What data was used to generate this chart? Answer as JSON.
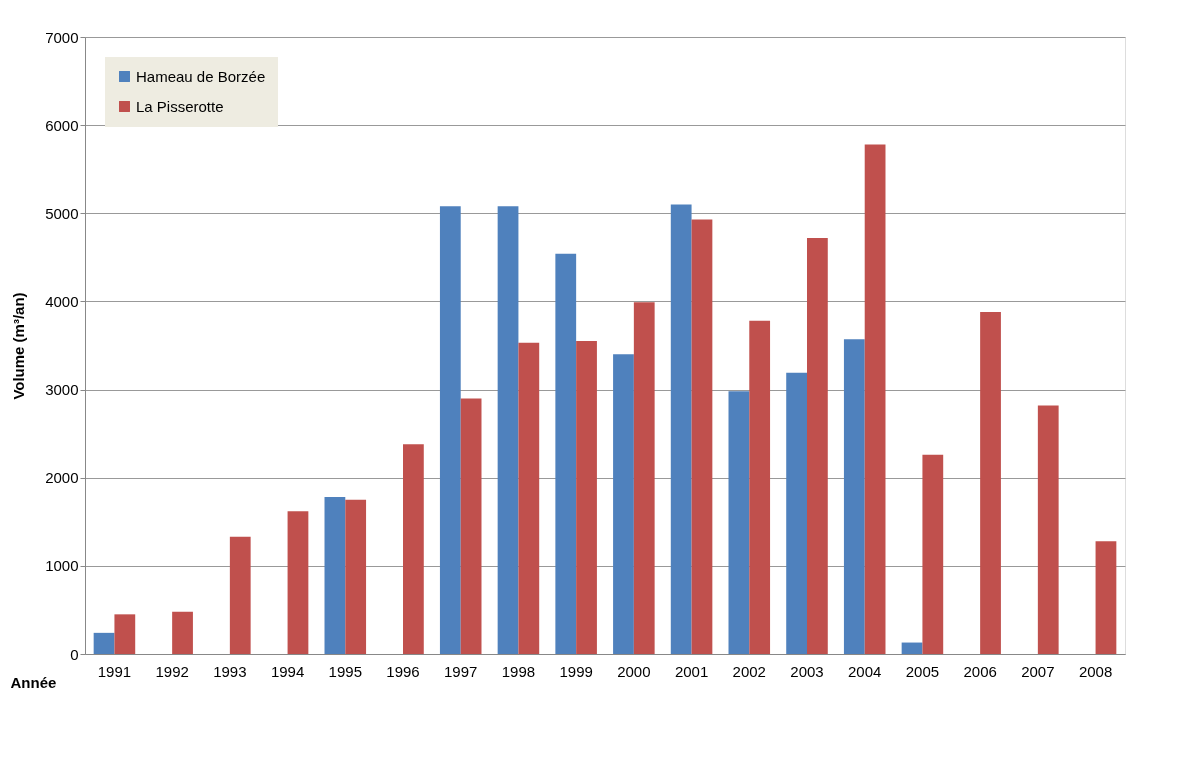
{
  "chart_data": {
    "type": "bar",
    "xlabel": "Année",
    "ylabel": "Volume (m³/an)",
    "categories": [
      "1991",
      "1992",
      "1993",
      "1994",
      "1995",
      "1996",
      "1997",
      "1998",
      "1999",
      "2000",
      "2001",
      "2002",
      "2003",
      "2004",
      "2005",
      "2006",
      "2007",
      "2008"
    ],
    "series": [
      {
        "name": "Hameau de Borzée",
        "color": "#4f81bd",
        "values": [
          240,
          null,
          null,
          null,
          1780,
          null,
          5080,
          5080,
          4540,
          3400,
          5100,
          2980,
          3190,
          3570,
          130,
          null,
          null,
          null
        ]
      },
      {
        "name": "La Pisserotte",
        "color": "#c0504d",
        "values": [
          450,
          480,
          1330,
          1620,
          1750,
          2380,
          2900,
          3530,
          3550,
          3990,
          4930,
          3780,
          4720,
          5780,
          2260,
          3880,
          2820,
          1280
        ]
      }
    ],
    "ylim": [
      0,
      7000
    ],
    "yticks": [
      0,
      1000,
      2000,
      3000,
      4000,
      5000,
      6000,
      7000
    ],
    "grid": "y",
    "legend": "top left"
  }
}
